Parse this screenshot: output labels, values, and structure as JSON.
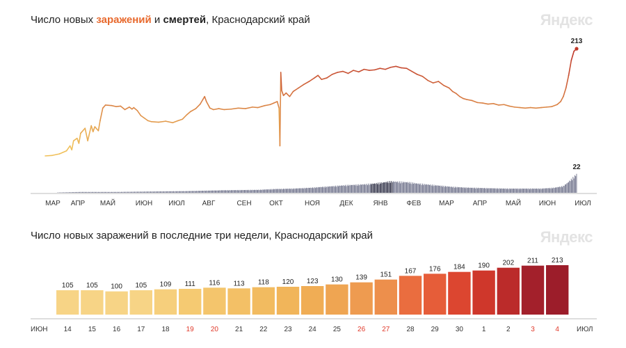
{
  "brand": "Яндекс",
  "top_title": {
    "prefix": "Число новых ",
    "infections_word": "заражений",
    "connector": " и ",
    "deaths_word": "смертей",
    "suffix": ", Краснодарский край"
  },
  "bottom_title": "Число новых заражений в последние три недели, Краснодарский край",
  "colors": {
    "infections_low": "#f0c05a",
    "infections_high": "#c0392b",
    "deaths": "#6d7089",
    "deaths_peak": "#2e2f45"
  },
  "chart_data": [
    {
      "type": "line",
      "title": "Число новых заражений и смертей, Краснодарский край",
      "x_tick_labels": [
        "МАР",
        "АПР",
        "МАЙ",
        "ИЮН",
        "ИЮЛ",
        "АВГ",
        "СЕН",
        "ОКТ",
        "НОЯ",
        "ДЕК",
        "ЯНВ",
        "ФЕВ",
        "МАР",
        "АПР",
        "МАЙ",
        "ИЮН",
        "ИЮЛ"
      ],
      "series": [
        {
          "name": "заражений",
          "points": [
            [
              0,
              0
            ],
            [
              8,
              1
            ],
            [
              16,
              4
            ],
            [
              24,
              10
            ],
            [
              28,
              20
            ],
            [
              30,
              12
            ],
            [
              32,
              30
            ],
            [
              36,
              35
            ],
            [
              38,
              25
            ],
            [
              40,
              45
            ],
            [
              45,
              55
            ],
            [
              48,
              30
            ],
            [
              52,
              60
            ],
            [
              54,
              48
            ],
            [
              56,
              58
            ],
            [
              60,
              50
            ],
            [
              62,
              70
            ],
            [
              65,
              95
            ],
            [
              68,
              101
            ],
            [
              75,
              100
            ],
            [
              80,
              98
            ],
            [
              85,
              99
            ],
            [
              90,
              92
            ],
            [
              95,
              97
            ],
            [
              98,
              93
            ],
            [
              100,
              96
            ],
            [
              104,
              90
            ],
            [
              108,
              80
            ],
            [
              112,
              75
            ],
            [
              116,
              70
            ],
            [
              120,
              68
            ],
            [
              128,
              67
            ],
            [
              136,
              69
            ],
            [
              144,
              66
            ],
            [
              150,
              70
            ],
            [
              155,
              73
            ],
            [
              160,
              82
            ],
            [
              164,
              88
            ],
            [
              170,
              94
            ],
            [
              175,
              103
            ],
            [
              178,
              112
            ],
            [
              180,
              118
            ],
            [
              182,
              108
            ],
            [
              186,
              95
            ],
            [
              190,
              92
            ],
            [
              196,
              94
            ],
            [
              202,
              92
            ],
            [
              210,
              93
            ],
            [
              218,
              95
            ],
            [
              226,
              94
            ],
            [
              234,
              97
            ],
            [
              240,
              96
            ],
            [
              248,
              100
            ],
            [
              254,
              102
            ],
            [
              258,
              105
            ],
            [
              262,
              108
            ],
            [
              264,
              95
            ],
            [
              265,
              20
            ],
            [
              266,
              166
            ],
            [
              267,
              130
            ],
            [
              269,
              120
            ],
            [
              272,
              125
            ],
            [
              276,
              118
            ],
            [
              280,
              128
            ],
            [
              286,
              135
            ],
            [
              292,
              142
            ],
            [
              298,
              148
            ],
            [
              304,
              155
            ],
            [
              308,
              160
            ],
            [
              312,
              152
            ],
            [
              318,
              155
            ],
            [
              324,
              162
            ],
            [
              330,
              166
            ],
            [
              336,
              168
            ],
            [
              342,
              164
            ],
            [
              348,
              170
            ],
            [
              354,
              167
            ],
            [
              360,
              172
            ],
            [
              366,
              170
            ],
            [
              372,
              171
            ],
            [
              378,
              174
            ],
            [
              384,
              172
            ],
            [
              390,
              176
            ],
            [
              396,
              178
            ],
            [
              402,
              175
            ],
            [
              408,
              174
            ],
            [
              414,
              168
            ],
            [
              420,
              162
            ],
            [
              426,
              158
            ],
            [
              432,
              150
            ],
            [
              438,
              145
            ],
            [
              444,
              148
            ],
            [
              450,
              140
            ],
            [
              456,
              135
            ],
            [
              460,
              128
            ],
            [
              464,
              124
            ],
            [
              468,
              118
            ],
            [
              472,
              114
            ],
            [
              476,
              112
            ],
            [
              482,
              110
            ],
            [
              488,
              106
            ],
            [
              494,
              105
            ],
            [
              500,
              103
            ],
            [
              506,
              104
            ],
            [
              512,
              101
            ],
            [
              518,
              102
            ],
            [
              524,
              99
            ],
            [
              530,
              97
            ],
            [
              536,
              96
            ],
            [
              542,
              95
            ],
            [
              548,
              96
            ],
            [
              554,
              95
            ],
            [
              560,
              96
            ],
            [
              566,
              97
            ],
            [
              572,
              98
            ],
            [
              578,
              102
            ],
            [
              582,
              108
            ],
            [
              585,
              118
            ],
            [
              588,
              135
            ],
            [
              591,
              160
            ],
            [
              594,
              190
            ],
            [
              597,
              208
            ],
            [
              600,
              213
            ]
          ]
        },
        {
          "name": "смертей",
          "end_value": 22,
          "points": [
            [
              0,
              0
            ],
            [
              40,
              1
            ],
            [
              80,
              1
            ],
            [
              120,
              1.5
            ],
            [
              160,
              2
            ],
            [
              200,
              3
            ],
            [
              240,
              3.5
            ],
            [
              260,
              4.5
            ],
            [
              280,
              5
            ],
            [
              300,
              6
            ],
            [
              320,
              7.5
            ],
            [
              340,
              9
            ],
            [
              360,
              10
            ],
            [
              372,
              11
            ],
            [
              380,
              12
            ],
            [
              390,
              13.5
            ],
            [
              400,
              13
            ],
            [
              410,
              12.5
            ],
            [
              420,
              11
            ],
            [
              440,
              9
            ],
            [
              460,
              7
            ],
            [
              480,
              6
            ],
            [
              500,
              5.5
            ],
            [
              520,
              5
            ],
            [
              540,
              5
            ],
            [
              560,
              5
            ],
            [
              575,
              6
            ],
            [
              585,
              8
            ],
            [
              590,
              12
            ],
            [
              595,
              17
            ],
            [
              600,
              22
            ]
          ]
        }
      ],
      "annotations": [
        "213",
        "22"
      ],
      "grid": false,
      "legend": "none"
    },
    {
      "type": "bar",
      "title": "Число новых заражений в последние три недели, Краснодарский край",
      "categories": [
        "14",
        "15",
        "16",
        "17",
        "18",
        "19",
        "20",
        "21",
        "22",
        "23",
        "24",
        "25",
        "26",
        "27",
        "28",
        "29",
        "30",
        "1",
        "2",
        "3",
        "4"
      ],
      "values": [
        105,
        105,
        100,
        105,
        109,
        111,
        116,
        113,
        118,
        120,
        123,
        130,
        139,
        151,
        167,
        176,
        184,
        190,
        202,
        211,
        213
      ],
      "weekend_categories": [
        "19",
        "20",
        "26",
        "27",
        "3",
        "4"
      ],
      "month_labels": {
        "start": "ИЮН",
        "end": "ИЮЛ"
      },
      "ylim": [
        0,
        213
      ],
      "grid": false,
      "legend": "none"
    }
  ]
}
